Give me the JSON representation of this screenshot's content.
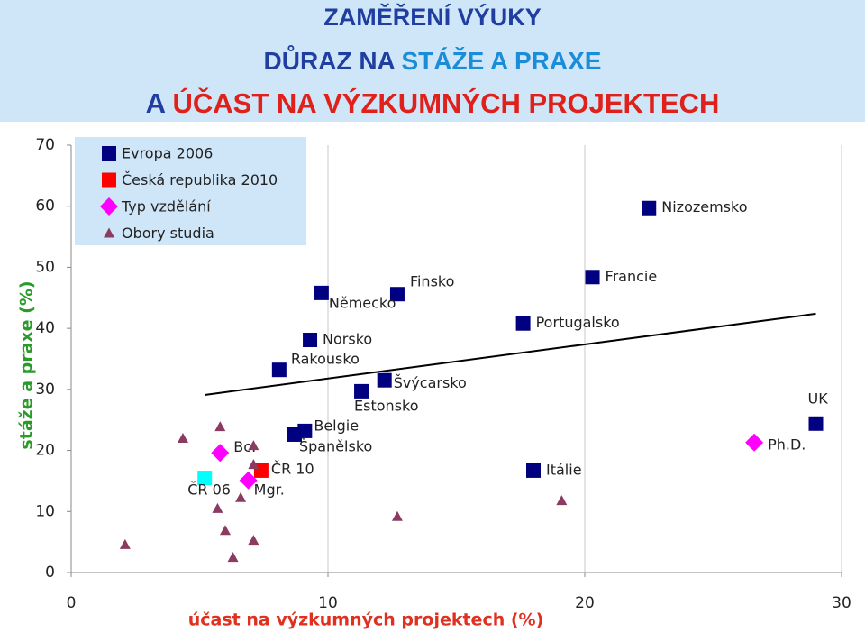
{
  "header": [
    [
      {
        "text": "ZAMĚŘENÍ VÝUKY",
        "color": "#1f3ea0"
      }
    ],
    [
      {
        "text": "DŮRAZ NA ",
        "color": "#1f3ea0"
      },
      {
        "text": "STÁŽE A PRAXE",
        "color": "#1a8cd8"
      }
    ],
    [
      {
        "text": "A ",
        "color": "#1f3ea0"
      },
      {
        "text": "ÚČAST NA VÝZKUMNÝCH PROJEKTECH",
        "color": "#e0201a"
      }
    ]
  ],
  "chart_data": {
    "type": "scatter",
    "x_label": "účast na výzkumných projektech (%)",
    "y_label": "stáže a praxe (%)",
    "xlim": [
      0,
      30
    ],
    "ylim": [
      0,
      70
    ],
    "xticks": [
      0,
      10,
      20,
      30
    ],
    "yticks": [
      0,
      10,
      20,
      30,
      40,
      50,
      60,
      70
    ],
    "grid": "x",
    "legend": "upper left",
    "series": [
      {
        "name": "Evropa 2006",
        "color": "#000080",
        "marker": "square",
        "x": [
          22.5,
          20.3,
          12.7,
          9.75,
          17.6,
          9.3,
          8.1,
          12.2,
          11.3,
          9.1,
          8.7,
          18.0,
          29.0
        ],
        "y": [
          59.7,
          48.4,
          45.6,
          45.8,
          40.8,
          38.1,
          33.2,
          31.5,
          29.7,
          23.2,
          22.6,
          16.7,
          24.4
        ],
        "labels": [
          "Nizozemsko",
          "Francie",
          "Finsko",
          "Německo",
          "Portugalsko",
          "Norsko",
          "Rakousko",
          "Švýcarsko",
          "Estonsko",
          "Belgie",
          "Španělsko",
          "Itálie",
          "UK"
        ]
      },
      {
        "name": "Česká republika 2010",
        "color": "#ff0000",
        "marker": "square",
        "x": [
          7.4
        ],
        "y": [
          16.7
        ],
        "labels": [
          "ČR 10"
        ]
      },
      {
        "name": "Typ vzdělání",
        "color": "#ff00ff",
        "marker": "diamond",
        "x": [
          5.8,
          6.9,
          26.6
        ],
        "y": [
          19.6,
          15.1,
          21.3
        ],
        "labels": [
          "Bc.",
          "Mgr.",
          "Ph.D."
        ]
      },
      {
        "name": "Obory studia",
        "color": "#8b3a62",
        "marker": "triangle",
        "x": [
          2.1,
          4.35,
          5.8,
          5.7,
          6.0,
          6.3,
          6.6,
          7.1,
          7.1,
          7.1,
          12.7,
          19.1
        ],
        "y": [
          4.6,
          22.0,
          23.9,
          10.5,
          6.9,
          2.5,
          12.3,
          20.8,
          17.7,
          5.3,
          9.2,
          11.8
        ]
      },
      {
        "color": "#00ffff",
        "marker": "square",
        "x": [
          5.2
        ],
        "y": [
          15.5
        ],
        "labels": [
          "ČR 06"
        ]
      }
    ],
    "trendline": {
      "color": "#000000",
      "x": [
        5.2,
        29.0
      ],
      "y": [
        29.1,
        42.4
      ]
    }
  }
}
